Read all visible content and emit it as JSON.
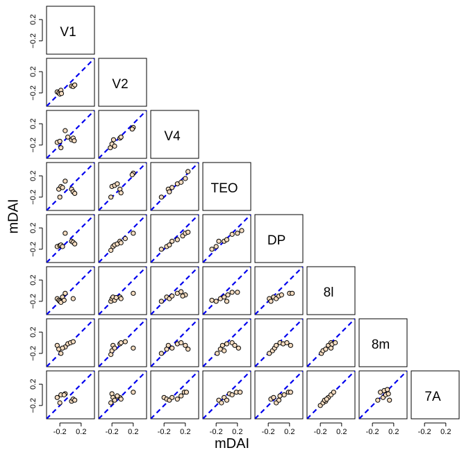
{
  "chart_data": {
    "type": "scatter",
    "layout": "lower-triangular scatterplot matrix",
    "areas": [
      "V1",
      "V2",
      "V4",
      "TEO",
      "DP",
      "8l",
      "8m",
      "7A"
    ],
    "xlabel": "mDAI",
    "ylabel": "mDAI",
    "xlim": [
      -0.45,
      0.45
    ],
    "ylim": [
      -0.45,
      0.45
    ],
    "xticks": [
      -0.2,
      0.2
    ],
    "yticks": [
      -0.2,
      0.2
    ],
    "tick_labels": {
      "neg": "-0.2",
      "pos": "0.2",
      "neg_rot": "−0.2",
      "pos_rot": "0.2"
    },
    "reference_line": "y = x",
    "reference_line_color": "#0000ee",
    "point_fill": "#f5dcc0",
    "point_stroke": "#000000",
    "panels": [
      {
        "row": "V2",
        "col": "V1",
        "points": [
          [
            -0.25,
            -0.18
          ],
          [
            -0.22,
            -0.2
          ],
          [
            -0.18,
            -0.15
          ],
          [
            -0.2,
            -0.22
          ],
          [
            -0.17,
            -0.21
          ],
          [
            0.02,
            -0.07
          ],
          [
            0.05,
            -0.08
          ],
          [
            0.08,
            -0.05
          ]
        ]
      },
      {
        "row": "V4",
        "col": "V1",
        "points": [
          [
            -0.25,
            -0.15
          ],
          [
            -0.2,
            -0.13
          ],
          [
            -0.18,
            -0.25
          ],
          [
            -0.1,
            0.07
          ],
          [
            -0.05,
            -0.05
          ],
          [
            0.02,
            -0.1
          ],
          [
            0.05,
            -0.07
          ],
          [
            0.07,
            -0.12
          ]
        ]
      },
      {
        "row": "V4",
        "col": "V2",
        "points": [
          [
            -0.23,
            -0.25
          ],
          [
            -0.2,
            -0.18
          ],
          [
            -0.17,
            -0.1
          ],
          [
            -0.15,
            -0.22
          ],
          [
            -0.05,
            -0.07
          ],
          [
            -0.03,
            -0.05
          ],
          [
            0.2,
            0.13
          ],
          [
            0.18,
            0.1
          ]
        ]
      },
      {
        "row": "TEO",
        "col": "V1",
        "points": [
          [
            -0.22,
            -0.05
          ],
          [
            -0.18,
            0.0
          ],
          [
            -0.2,
            -0.2
          ],
          [
            -0.1,
            0.1
          ],
          [
            0.02,
            -0.05
          ],
          [
            0.05,
            -0.1
          ],
          [
            0.08,
            -0.13
          ],
          [
            -0.15,
            -0.02
          ]
        ]
      },
      {
        "row": "TEO",
        "col": "V2",
        "points": [
          [
            -0.22,
            -0.2
          ],
          [
            -0.2,
            0.0
          ],
          [
            -0.15,
            0.02
          ],
          [
            -0.05,
            -0.05
          ],
          [
            -0.03,
            -0.12
          ],
          [
            -0.1,
            0.05
          ],
          [
            0.2,
            0.25
          ],
          [
            0.18,
            0.22
          ]
        ]
      },
      {
        "row": "TEO",
        "col": "V4",
        "points": [
          [
            -0.25,
            -0.2
          ],
          [
            -0.12,
            -0.05
          ],
          [
            -0.1,
            -0.1
          ],
          [
            -0.05,
            -0.02
          ],
          [
            0.05,
            0.05
          ],
          [
            0.12,
            0.08
          ],
          [
            0.2,
            0.15
          ],
          [
            0.25,
            0.28
          ]
        ]
      },
      {
        "row": "DP",
        "col": "V1",
        "points": [
          [
            -0.25,
            -0.15
          ],
          [
            -0.2,
            -0.13
          ],
          [
            -0.18,
            -0.12
          ],
          [
            -0.1,
            0.1
          ],
          [
            0.02,
            -0.05
          ],
          [
            0.05,
            -0.07
          ],
          [
            0.08,
            -0.1
          ],
          [
            -0.15,
            -0.15
          ]
        ]
      },
      {
        "row": "DP",
        "col": "V2",
        "points": [
          [
            -0.22,
            -0.22
          ],
          [
            -0.18,
            -0.15
          ],
          [
            -0.15,
            -0.12
          ],
          [
            -0.1,
            -0.1
          ],
          [
            -0.05,
            -0.05
          ],
          [
            -0.03,
            -0.08
          ],
          [
            0.05,
            0.0
          ],
          [
            0.2,
            0.1
          ]
        ]
      },
      {
        "row": "DP",
        "col": "V4",
        "points": [
          [
            -0.25,
            -0.2
          ],
          [
            -0.15,
            -0.15
          ],
          [
            -0.1,
            -0.12
          ],
          [
            -0.05,
            -0.05
          ],
          [
            0.05,
            -0.02
          ],
          [
            0.15,
            0.05
          ],
          [
            0.2,
            0.1
          ],
          [
            0.25,
            0.12
          ]
        ]
      },
      {
        "row": "DP",
        "col": "TEO",
        "points": [
          [
            -0.28,
            -0.2
          ],
          [
            -0.2,
            -0.15
          ],
          [
            -0.15,
            -0.05
          ],
          [
            -0.05,
            -0.05
          ],
          [
            0.0,
            -0.02
          ],
          [
            0.1,
            0.08
          ],
          [
            0.2,
            0.1
          ],
          [
            0.28,
            0.15
          ]
        ]
      },
      {
        "row": "8l",
        "col": "V1",
        "points": [
          [
            -0.25,
            -0.15
          ],
          [
            -0.22,
            -0.18
          ],
          [
            -0.2,
            -0.2
          ],
          [
            -0.15,
            -0.12
          ],
          [
            -0.1,
            -0.05
          ],
          [
            0.05,
            -0.15
          ],
          [
            -0.18,
            -0.22
          ],
          [
            -0.12,
            -0.18
          ]
        ]
      },
      {
        "row": "8l",
        "col": "V2",
        "points": [
          [
            -0.22,
            -0.2
          ],
          [
            -0.2,
            -0.15
          ],
          [
            -0.18,
            -0.12
          ],
          [
            -0.15,
            -0.18
          ],
          [
            -0.05,
            -0.12
          ],
          [
            -0.03,
            -0.15
          ],
          [
            0.2,
            -0.05
          ],
          [
            -0.12,
            -0.13
          ]
        ]
      },
      {
        "row": "8l",
        "col": "V4",
        "points": [
          [
            -0.25,
            -0.2
          ],
          [
            -0.15,
            -0.12
          ],
          [
            -0.1,
            -0.15
          ],
          [
            -0.05,
            -0.1
          ],
          [
            0.05,
            -0.05
          ],
          [
            0.12,
            -0.02
          ],
          [
            0.2,
            -0.08
          ],
          [
            0.15,
            -0.1
          ]
        ]
      },
      {
        "row": "8l",
        "col": "TEO",
        "points": [
          [
            -0.28,
            -0.18
          ],
          [
            -0.2,
            -0.2
          ],
          [
            -0.12,
            -0.15
          ],
          [
            -0.05,
            -0.12
          ],
          [
            0.02,
            -0.08
          ],
          [
            0.1,
            -0.03
          ],
          [
            0.2,
            -0.03
          ],
          [
            0.0,
            -0.2
          ]
        ]
      },
      {
        "row": "8l",
        "col": "DP",
        "points": [
          [
            -0.18,
            -0.15
          ],
          [
            -0.15,
            -0.2
          ],
          [
            -0.1,
            -0.12
          ],
          [
            -0.05,
            -0.15
          ],
          [
            0.0,
            -0.1
          ],
          [
            0.05,
            -0.08
          ],
          [
            0.2,
            -0.05
          ],
          [
            0.25,
            -0.05
          ]
        ]
      },
      {
        "row": "8m",
        "col": "V1",
        "points": [
          [
            -0.25,
            -0.05
          ],
          [
            -0.22,
            -0.12
          ],
          [
            -0.18,
            -0.2
          ],
          [
            -0.1,
            -0.08
          ],
          [
            -0.05,
            -0.02
          ],
          [
            0.0,
            0.0
          ],
          [
            0.05,
            0.02
          ],
          [
            -0.15,
            -0.1
          ]
        ]
      },
      {
        "row": "8m",
        "col": "V2",
        "points": [
          [
            -0.22,
            -0.22
          ],
          [
            -0.2,
            -0.15
          ],
          [
            -0.18,
            -0.05
          ],
          [
            -0.15,
            -0.1
          ],
          [
            -0.05,
            -0.02
          ],
          [
            -0.03,
            0.0
          ],
          [
            0.05,
            0.02
          ],
          [
            0.2,
            -0.1
          ]
        ]
      },
      {
        "row": "8m",
        "col": "V4",
        "points": [
          [
            -0.25,
            -0.2
          ],
          [
            -0.15,
            -0.12
          ],
          [
            -0.12,
            -0.05
          ],
          [
            -0.05,
            -0.1
          ],
          [
            0.05,
            -0.02
          ],
          [
            0.12,
            0.0
          ],
          [
            0.2,
            -0.05
          ],
          [
            0.25,
            -0.12
          ]
        ]
      },
      {
        "row": "8m",
        "col": "TEO",
        "points": [
          [
            -0.18,
            -0.2
          ],
          [
            -0.12,
            -0.12
          ],
          [
            -0.08,
            -0.05
          ],
          [
            -0.05,
            -0.15
          ],
          [
            0.0,
            -0.02
          ],
          [
            0.1,
            0.0
          ],
          [
            0.15,
            -0.05
          ],
          [
            0.22,
            -0.1
          ]
        ]
      },
      {
        "row": "8m",
        "col": "DP",
        "points": [
          [
            -0.18,
            -0.2
          ],
          [
            -0.12,
            -0.15
          ],
          [
            -0.08,
            -0.1
          ],
          [
            -0.05,
            -0.05
          ],
          [
            0.02,
            0.0
          ],
          [
            0.08,
            -0.02
          ],
          [
            0.15,
            0.0
          ],
          [
            0.22,
            -0.05
          ]
        ]
      },
      {
        "row": "8m",
        "col": "8l",
        "points": [
          [
            -0.18,
            -0.2
          ],
          [
            -0.15,
            -0.15
          ],
          [
            -0.1,
            -0.12
          ],
          [
            -0.05,
            -0.05
          ],
          [
            0.0,
            0.0
          ],
          [
            0.02,
            -0.03
          ],
          [
            0.08,
            0.0
          ],
          [
            0.0,
            -0.1
          ]
        ]
      },
      {
        "row": "7A",
        "col": "V1",
        "points": [
          [
            -0.25,
            -0.05
          ],
          [
            -0.2,
            -0.15
          ],
          [
            -0.18,
            0.0
          ],
          [
            -0.1,
            0.02
          ],
          [
            0.02,
            -0.12
          ],
          [
            0.05,
            -0.08
          ],
          [
            0.08,
            -0.1
          ],
          [
            -0.12,
            0.0
          ]
        ]
      },
      {
        "row": "7A",
        "col": "V2",
        "points": [
          [
            -0.22,
            -0.15
          ],
          [
            -0.2,
            0.02
          ],
          [
            -0.18,
            -0.05
          ],
          [
            -0.15,
            -0.1
          ],
          [
            -0.05,
            -0.05
          ],
          [
            -0.03,
            -0.08
          ],
          [
            0.2,
            0.05
          ],
          [
            -0.1,
            -0.02
          ]
        ]
      },
      {
        "row": "7A",
        "col": "V4",
        "points": [
          [
            -0.2,
            -0.05
          ],
          [
            -0.15,
            -0.08
          ],
          [
            -0.1,
            -0.1
          ],
          [
            -0.05,
            -0.05
          ],
          [
            0.05,
            -0.08
          ],
          [
            0.12,
            -0.02
          ],
          [
            0.18,
            0.05
          ],
          [
            0.22,
            0.05
          ]
        ]
      },
      {
        "row": "7A",
        "col": "TEO",
        "points": [
          [
            -0.15,
            -0.1
          ],
          [
            -0.1,
            -0.15
          ],
          [
            -0.05,
            -0.05
          ],
          [
            0.0,
            -0.1
          ],
          [
            0.05,
            0.02
          ],
          [
            0.1,
            0.0
          ],
          [
            0.18,
            0.05
          ],
          [
            0.25,
            0.05
          ]
        ]
      },
      {
        "row": "7A",
        "col": "DP",
        "points": [
          [
            -0.15,
            -0.08
          ],
          [
            -0.1,
            -0.05
          ],
          [
            -0.05,
            -0.15
          ],
          [
            0.0,
            -0.1
          ],
          [
            0.02,
            -0.02
          ],
          [
            0.1,
            0.0
          ],
          [
            0.18,
            0.05
          ],
          [
            0.22,
            0.05
          ]
        ]
      },
      {
        "row": "7A",
        "col": "8l",
        "points": [
          [
            -0.2,
            -0.2
          ],
          [
            -0.15,
            -0.15
          ],
          [
            -0.1,
            -0.12
          ],
          [
            -0.05,
            -0.05
          ],
          [
            0.0,
            0.0
          ],
          [
            0.05,
            0.05
          ],
          [
            -0.12,
            -0.1
          ],
          [
            -0.08,
            -0.08
          ]
        ]
      },
      {
        "row": "7A",
        "col": "8m",
        "points": [
          [
            -0.05,
            0.05
          ],
          [
            0.0,
            -0.05
          ],
          [
            0.05,
            0.0
          ],
          [
            0.1,
            0.02
          ],
          [
            0.12,
            -0.1
          ],
          [
            0.02,
            0.08
          ],
          [
            0.08,
            0.1
          ],
          [
            -0.1,
            -0.1
          ]
        ]
      }
    ]
  }
}
